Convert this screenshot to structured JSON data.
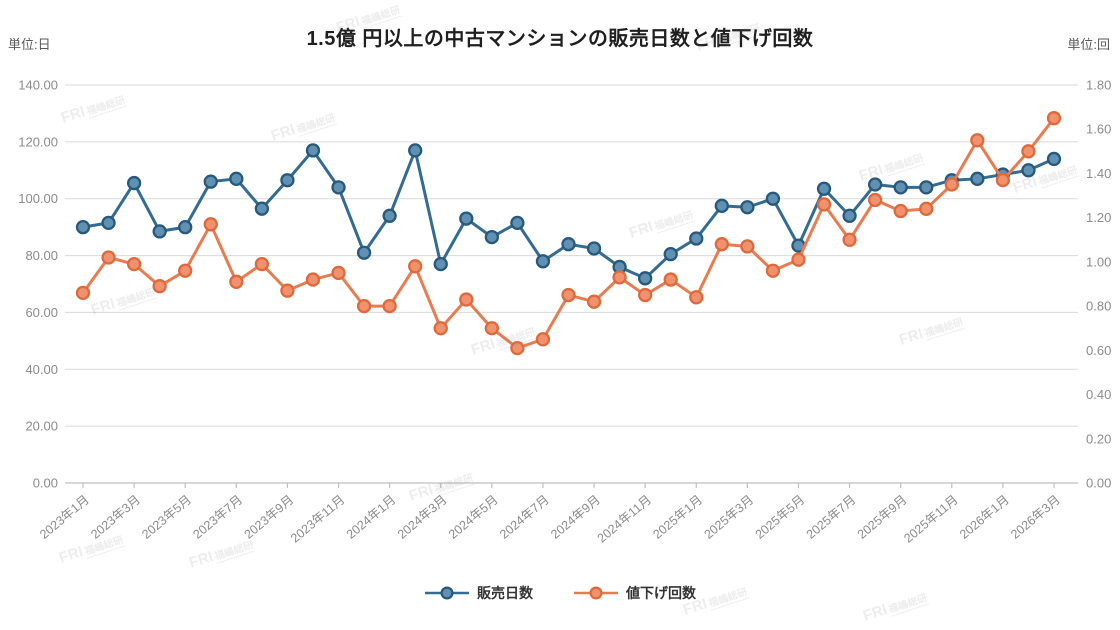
{
  "header": {
    "title": "1.5億 円以上の中古マンションの販売日数と値下げ回数",
    "unit_left": "単位:日",
    "unit_right": "単位:回"
  },
  "watermark_text": {
    "main": "FRI",
    "sub": "福嶋総研"
  },
  "chart_data": {
    "type": "line",
    "title": "1.5億 円以上の中古マンションの販売日数と値下げ回数",
    "grid": true,
    "legend_position": "bottom",
    "x_label_every": 2,
    "x": [
      "2023年1月",
      "2023年2月",
      "2023年3月",
      "2023年4月",
      "2023年5月",
      "2023年6月",
      "2023年7月",
      "2023年8月",
      "2023年9月",
      "2023年10月",
      "2023年11月",
      "2023年12月",
      "2024年1月",
      "2024年2月",
      "2024年3月",
      "2024年4月",
      "2024年5月",
      "2024年6月",
      "2024年7月",
      "2024年8月",
      "2024年9月",
      "2024年10月",
      "2024年11月",
      "2024年12月",
      "2025年1月",
      "2025年2月",
      "2025年3月",
      "2025年4月",
      "2025年5月",
      "2025年6月",
      "2025年7月",
      "2025年8月",
      "2025年9月",
      "2025年10月",
      "2025年11月",
      "2025年12月",
      "2026年1月",
      "2026年2月",
      "2026年3月"
    ],
    "left_axis": {
      "unit": "日",
      "min": 0,
      "max": 140,
      "step": 20,
      "labels": [
        "140.00",
        "120.00",
        "100.00",
        "80.00",
        "60.00",
        "40.00",
        "20.00",
        "0.00"
      ]
    },
    "right_axis": {
      "unit": "回",
      "min": 0,
      "max": 1.8,
      "step": 0.2,
      "labels": [
        "1.80",
        "1.60",
        "1.40",
        "1.20",
        "1.00",
        "0.80",
        "0.60",
        "0.40",
        "0.20",
        "0.00"
      ]
    },
    "series": [
      {
        "name": "販売日数",
        "axis": "left",
        "line_color": "#336b93",
        "marker_fill": "#6191b2",
        "marker_border": "#27597c",
        "values": [
          90,
          91.5,
          105.5,
          88.5,
          90,
          106,
          107,
          96.5,
          106.5,
          117,
          104,
          81,
          94,
          117,
          77,
          93,
          86.5,
          91.5,
          78,
          84,
          82.5,
          76,
          72,
          80.5,
          86,
          97.5,
          97,
          100,
          83.5,
          103.5,
          94,
          105,
          104,
          104,
          106.5,
          107,
          108.5,
          110,
          114
        ]
      },
      {
        "name": "値下げ回数",
        "axis": "right",
        "line_color": "#e87c50",
        "marker_fill": "#f0926e",
        "marker_border": "#dd6a3d",
        "values": [
          0.86,
          1.02,
          0.99,
          0.89,
          0.96,
          1.17,
          0.91,
          0.99,
          0.87,
          0.92,
          0.95,
          0.8,
          0.8,
          0.98,
          0.7,
          0.83,
          0.7,
          0.61,
          0.65,
          0.85,
          0.82,
          0.93,
          0.85,
          0.92,
          0.84,
          1.08,
          1.07,
          0.96,
          1.01,
          1.26,
          1.1,
          1.28,
          1.23,
          1.24,
          1.35,
          1.55,
          1.37,
          1.5,
          1.65
        ]
      }
    ]
  }
}
